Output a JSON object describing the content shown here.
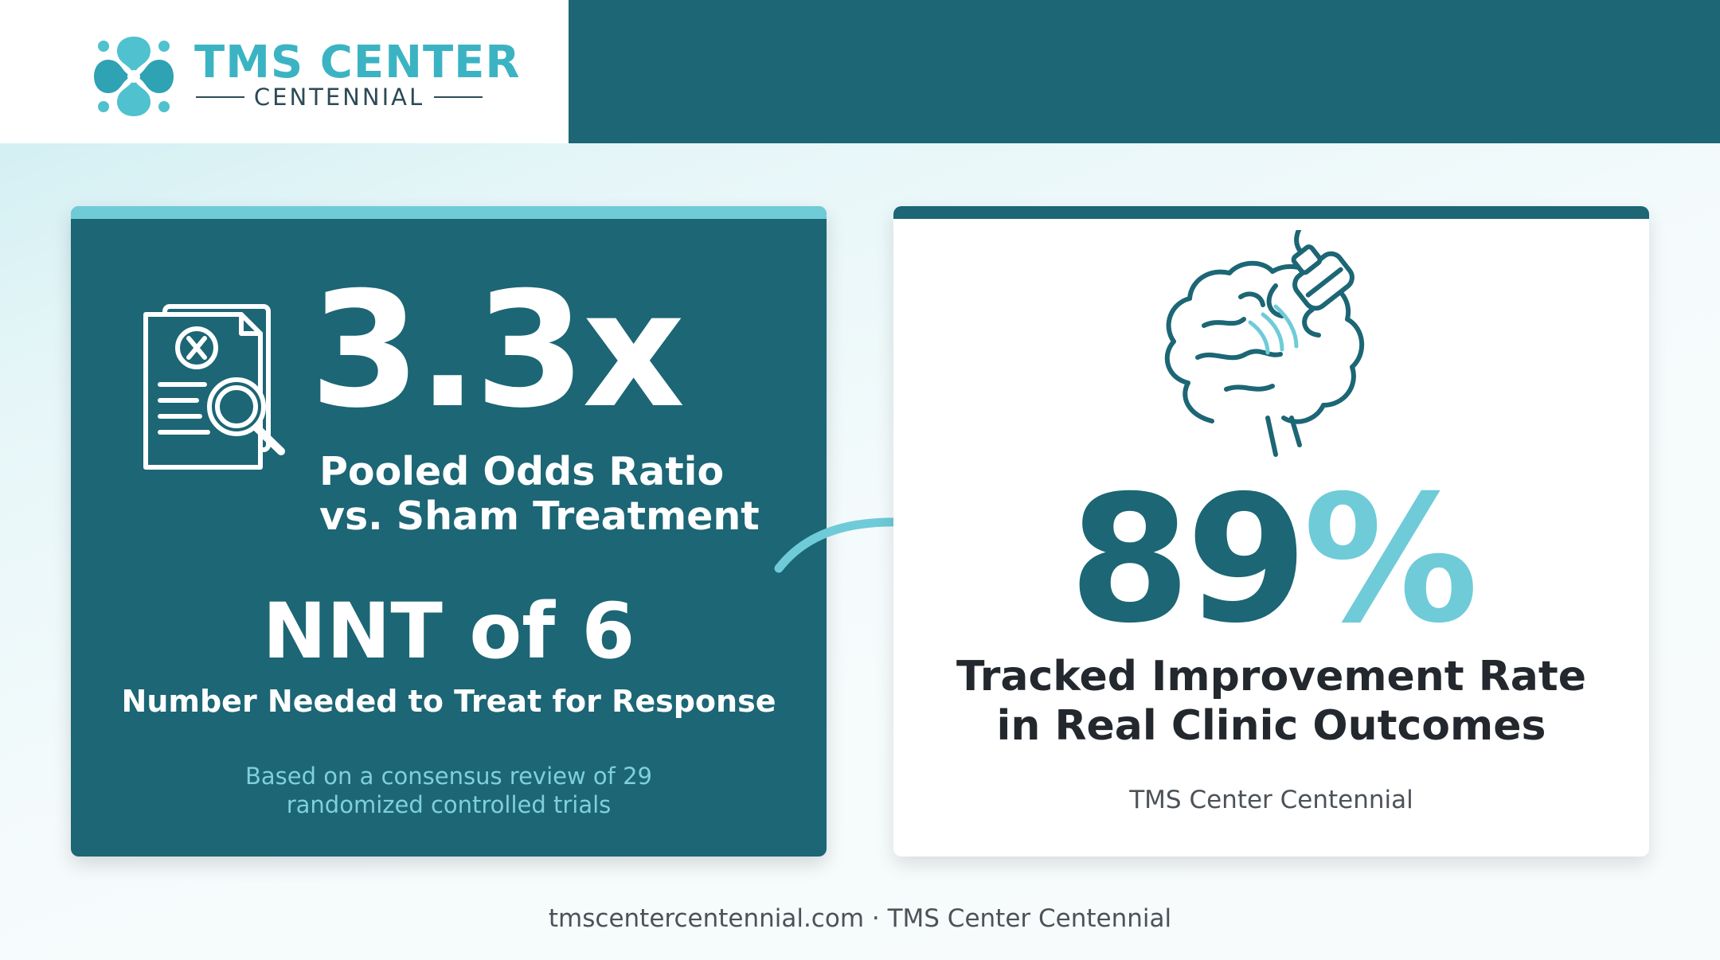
{
  "header": {
    "logo_title": "TMS CENTER",
    "logo_subtitle": "CENTENNIAL"
  },
  "left_card": {
    "icon": "research-document-magnifier-icon",
    "stat": "3.3x",
    "stat_label_line1": "Pooled Odds Ratio",
    "stat_label_line2": "vs. Sham Treatment",
    "nnt": "NNT of 6",
    "nnt_label": "Number Needed to Treat for Response",
    "footnote_line1": "Based on a consensus review of 29",
    "footnote_line2": "randomized controlled trials"
  },
  "arrow_icon": "curved-arrow-right-icon",
  "right_card": {
    "icon": "brain-tms-coil-icon",
    "percent_number": "89",
    "percent_sign": "%",
    "label_line1": "Tracked Improvement Rate",
    "label_line2": "in Real Clinic Outcomes",
    "source": "TMS Center Centennial"
  },
  "footer": {
    "text": "tmscentercentennial.com · TMS Center Centennial"
  },
  "colors": {
    "teal_dark": "#1c6675",
    "teal_light": "#6fcbd8",
    "logo_teal": "#3bb3c3",
    "text_dark": "#23282e"
  }
}
